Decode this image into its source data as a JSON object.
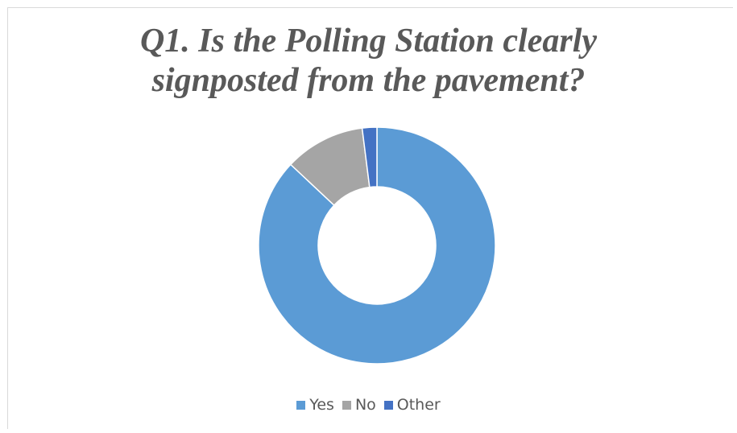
{
  "chart_data": {
    "type": "pie",
    "donut": true,
    "title_lines": [
      "Q1. Is the Polling Station clearly",
      "signposted from the pavement?"
    ],
    "categories": [
      "Yes",
      "No",
      "Other"
    ],
    "values": [
      87,
      11,
      2
    ],
    "colors": [
      "#5b9bd5",
      "#a5a5a5",
      "#4472c4"
    ],
    "legend_position": "bottom"
  }
}
